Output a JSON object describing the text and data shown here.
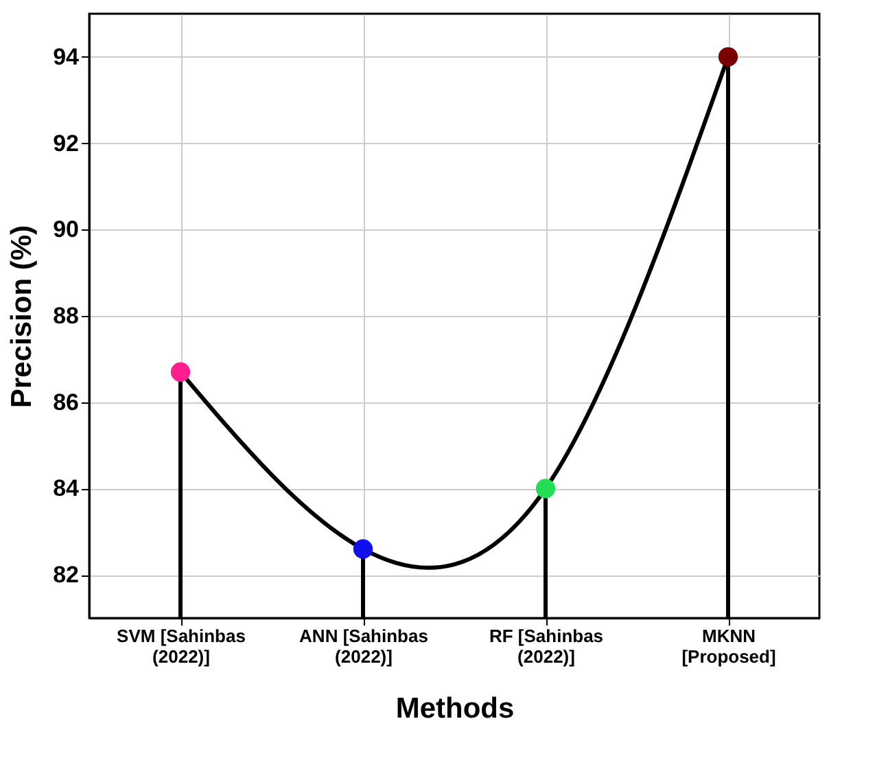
{
  "chart_data": {
    "type": "lollipop",
    "xlabel": "Methods",
    "ylabel": "Precision (%)",
    "categories": [
      "SVM [Sahinbas (2022)]",
      "ANN [Sahinbas (2022)]",
      "RF [Sahinbas (2022)]",
      "MKNN [Proposed]"
    ],
    "series": [
      {
        "type": "line",
        "color": "#000000",
        "values": [
          86.7,
          82.6,
          84.0,
          94.0
        ]
      },
      {
        "marker": "circle",
        "colors": [
          "#ff1f8e",
          "#1010ee",
          "#22dd55",
          "#7a0000"
        ],
        "values": [
          86.7,
          82.6,
          84.0,
          94.0
        ]
      }
    ],
    "ylim": [
      81,
      95
    ],
    "yticks": [
      82,
      84,
      86,
      88,
      90,
      92,
      94
    ],
    "grid": true
  }
}
